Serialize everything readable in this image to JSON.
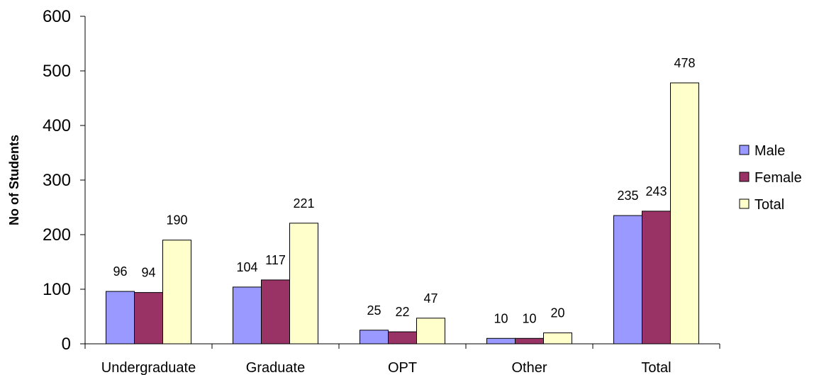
{
  "chart_data": {
    "type": "bar",
    "categories": [
      "Undergraduate",
      "Graduate",
      "OPT",
      "Other",
      "Total"
    ],
    "series": [
      {
        "name": "Male",
        "values": [
          96,
          104,
          25,
          10,
          235
        ],
        "color": "#9999ff"
      },
      {
        "name": "Female",
        "values": [
          94,
          117,
          22,
          10,
          243
        ],
        "color": "#993366"
      },
      {
        "name": "Total",
        "values": [
          190,
          221,
          47,
          20,
          478
        ],
        "color": "#ffffcc"
      }
    ],
    "data_labels": [
      [
        "96",
        "104",
        "25",
        "10",
        "235"
      ],
      [
        "94",
        "117",
        "22",
        "10",
        "243"
      ],
      [
        "190",
        "221",
        "47",
        "20",
        "478"
      ]
    ],
    "ylabel": "No of Students",
    "xlabel": "",
    "ylim": [
      0,
      600
    ],
    "yticks": [
      0,
      100,
      200,
      300,
      400,
      500,
      600
    ],
    "ytick_labels": [
      "0",
      "100",
      "200",
      "300",
      "400",
      "500",
      "600"
    ],
    "legend_position": "right",
    "grid": false
  }
}
